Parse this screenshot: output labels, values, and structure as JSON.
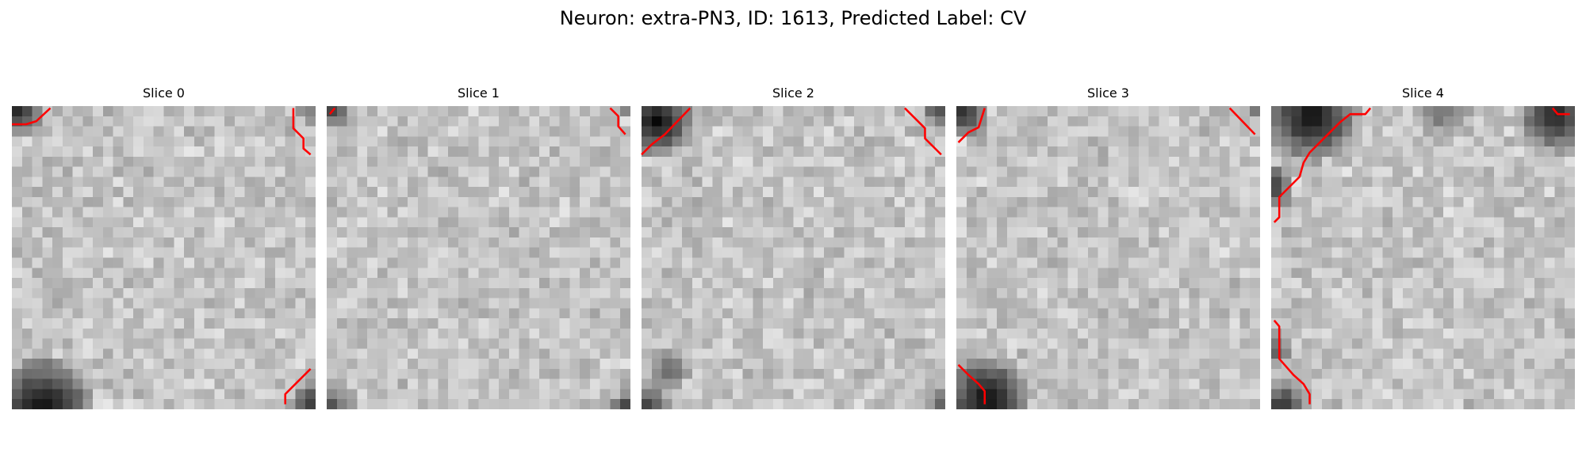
{
  "figure": {
    "title": "Neuron: extra-PN3, ID: 1613, Predicted Label: CV"
  },
  "contour_color": "#ff0000",
  "colormap": "gray",
  "grid_size": 30,
  "slices": [
    {
      "title": "Slice 0",
      "dark_regions": [
        "top-left corner",
        "bottom-left arc",
        "bottom-right corner",
        "top-right corner"
      ],
      "contours": [
        [
          [
            0,
            1.8
          ],
          [
            1.4,
            1.8
          ],
          [
            2.4,
            1.5
          ],
          [
            3.8,
            0.2
          ]
        ],
        [
          [
            27.8,
            0.2
          ],
          [
            27.8,
            2.2
          ],
          [
            28.8,
            3.2
          ],
          [
            28.8,
            4.2
          ],
          [
            29.5,
            4.8
          ]
        ],
        [
          [
            27,
            29.5
          ],
          [
            27,
            28.5
          ],
          [
            28,
            27.5
          ],
          [
            29.5,
            26
          ]
        ]
      ]
    },
    {
      "title": "Slice 1",
      "dark_regions": [
        "top-left corner",
        "bottom-left corner",
        "bottom-right corner"
      ],
      "contours": [
        [
          [
            0.3,
            0.8
          ],
          [
            0.8,
            0.2
          ]
        ],
        [
          [
            28,
            0.2
          ],
          [
            28.8,
            1
          ],
          [
            28.8,
            2
          ],
          [
            29.5,
            2.8
          ]
        ]
      ]
    },
    {
      "title": "Slice 2",
      "dark_regions": [
        "top-left arc",
        "top-right edge",
        "bottom-left corner",
        "bottom-right corner"
      ],
      "contours": [
        [
          [
            0,
            4.8
          ],
          [
            1,
            3.8
          ],
          [
            2.3,
            2.8
          ],
          [
            4.8,
            0.2
          ]
        ],
        [
          [
            26,
            0.2
          ],
          [
            28,
            2.2
          ],
          [
            28,
            3.2
          ],
          [
            29.6,
            4.8
          ]
        ]
      ]
    },
    {
      "title": "Slice 3",
      "dark_regions": [
        "top-left corner",
        "bottom-left arc"
      ],
      "contours": [
        [
          [
            0.2,
            3.6
          ],
          [
            1.2,
            2.6
          ],
          [
            2.2,
            2.1
          ],
          [
            2.8,
            0.2
          ]
        ],
        [
          [
            27,
            0.2
          ],
          [
            29.5,
            2.8
          ]
        ],
        [
          [
            0.2,
            25.6
          ],
          [
            1.2,
            26.6
          ],
          [
            2.2,
            27.5
          ],
          [
            2.8,
            28.2
          ],
          [
            2.8,
            29.5
          ]
        ]
      ]
    },
    {
      "title": "Slice 4",
      "dark_regions": [
        "top-left arc",
        "top-right arc",
        "left edge",
        "bottom-left corner"
      ],
      "contours": [
        [
          [
            0.3,
            11.5
          ],
          [
            0.8,
            11
          ],
          [
            0.8,
            9
          ],
          [
            2.8,
            7
          ],
          [
            3.2,
            5.6
          ],
          [
            3.8,
            4.6
          ],
          [
            4.8,
            3.6
          ],
          [
            5.8,
            2.6
          ],
          [
            6.8,
            1.6
          ],
          [
            7.8,
            0.8
          ],
          [
            9.3,
            0.8
          ],
          [
            9.8,
            0.2
          ]
        ],
        [
          [
            27.8,
            0.2
          ],
          [
            28.3,
            0.8
          ],
          [
            29.5,
            0.8
          ]
        ],
        [
          [
            0.3,
            21.2
          ],
          [
            0.8,
            21.8
          ],
          [
            0.8,
            25
          ],
          [
            2.2,
            26.6
          ],
          [
            3.2,
            27.5
          ],
          [
            3.8,
            28.5
          ],
          [
            3.8,
            29.5
          ]
        ]
      ]
    }
  ]
}
